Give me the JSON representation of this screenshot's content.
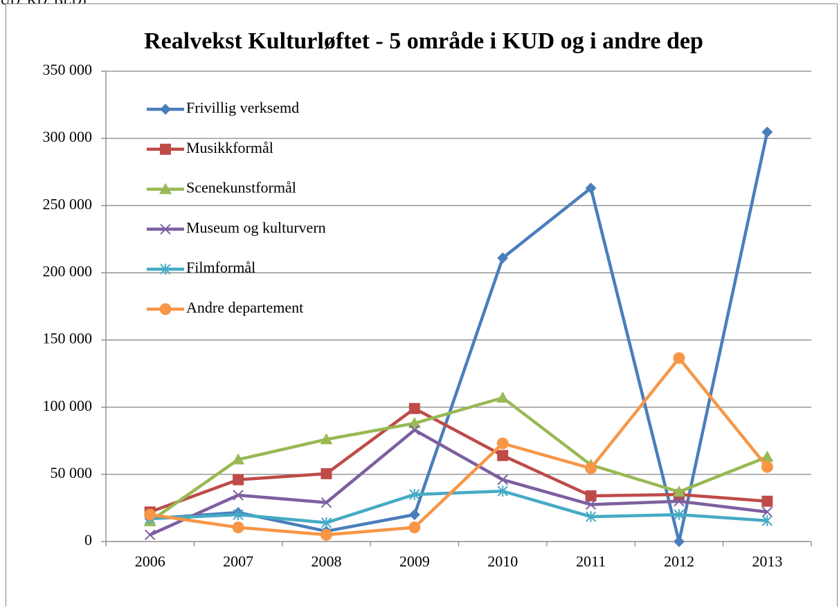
{
  "caption": "UD, KD, BLD)",
  "chart_data": {
    "type": "line",
    "title": "Realvekst Kulturløftet - 5 område i KUD og i andre dep",
    "categories": [
      "2006",
      "2007",
      "2008",
      "2009",
      "2010",
      "2011",
      "2012",
      "2013"
    ],
    "series": [
      {
        "name": "Frivillig verksemd",
        "color": "#4a7ebb",
        "marker": "diamond",
        "values": [
          17000,
          21600,
          7700,
          20000,
          211000,
          263000,
          0,
          304700
        ]
      },
      {
        "name": "Musikkformål",
        "color": "#be4b48",
        "marker": "square",
        "values": [
          22000,
          46000,
          50500,
          99000,
          64000,
          34000,
          35000,
          30000
        ]
      },
      {
        "name": "Scenekunstformål",
        "color": "#98b954",
        "marker": "triangle",
        "values": [
          15000,
          61000,
          76000,
          88000,
          107000,
          57000,
          37000,
          63000
        ]
      },
      {
        "name": "Museum og kulturvern",
        "color": "#7d5fa0",
        "marker": "x",
        "values": [
          5000,
          34500,
          29000,
          83000,
          46000,
          27500,
          30000,
          22000
        ]
      },
      {
        "name": "Filmformål",
        "color": "#46aac5",
        "marker": "star",
        "values": [
          17000,
          20000,
          14000,
          35000,
          37500,
          18500,
          20000,
          15500
        ]
      },
      {
        "name": "Andre departement",
        "color": "#f79646",
        "marker": "circle",
        "values": [
          20000,
          10500,
          5000,
          10500,
          73000,
          54500,
          136500,
          55500
        ]
      }
    ],
    "ylim": [
      0,
      350000
    ],
    "yticks": [
      {
        "value": 0,
        "label": "0"
      },
      {
        "value": 50000,
        "label": "50 000"
      },
      {
        "value": 100000,
        "label": "100 000"
      },
      {
        "value": 150000,
        "label": "150 000"
      },
      {
        "value": 200000,
        "label": "200 000"
      },
      {
        "value": 250000,
        "label": "250 000"
      },
      {
        "value": 300000,
        "label": "300 000"
      },
      {
        "value": 350000,
        "label": "350 000"
      }
    ],
    "grid": true,
    "legend": "top-left"
  }
}
